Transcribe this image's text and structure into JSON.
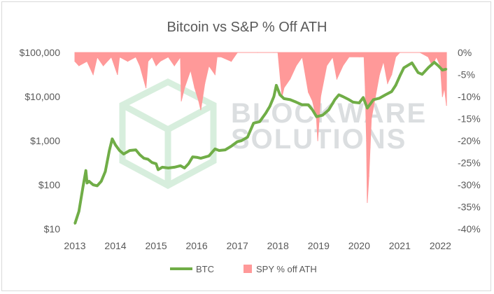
{
  "chart_data": {
    "type": "line",
    "title": "Bitcoin vs S&P % Off ATH",
    "xlabel": "",
    "ylabel": "",
    "x_ticks": [
      "2013",
      "2014",
      "2015",
      "2016",
      "2017",
      "2018",
      "2019",
      "2020",
      "2021",
      "2022"
    ],
    "xlim": [
      2013,
      2022.2
    ],
    "y_left": {
      "scale": "log",
      "ticks": [
        "$10",
        "$100",
        "$1,000",
        "$10,000",
        "$100,000"
      ],
      "ylim": [
        10,
        100000
      ]
    },
    "y_right": {
      "ticks": [
        "0%",
        "-5%",
        "-10%",
        "-15%",
        "-20%",
        "-25%",
        "-30%",
        "-35%",
        "-40%"
      ],
      "ylim": [
        -40,
        0
      ]
    },
    "legend": {
      "position": "bottom",
      "entries": [
        "BTC",
        "SPY % off ATH"
      ]
    },
    "grid": false,
    "colors": {
      "btc": "#70ad47",
      "spy": "#ff9999",
      "overlap": "#a0522d"
    },
    "watermark": "BLOCKWARE SOLUTIONS",
    "series": [
      {
        "name": "BTC",
        "axis": "left",
        "x": [
          2013.0,
          2013.1,
          2013.2,
          2013.27,
          2013.3,
          2013.35,
          2013.45,
          2013.55,
          2013.65,
          2013.75,
          2013.85,
          2013.92,
          2014.0,
          2014.1,
          2014.2,
          2014.35,
          2014.5,
          2014.6,
          2014.7,
          2014.8,
          2014.9,
          2015.0,
          2015.05,
          2015.15,
          2015.3,
          2015.45,
          2015.6,
          2015.7,
          2015.8,
          2015.9,
          2016.0,
          2016.1,
          2016.3,
          2016.45,
          2016.55,
          2016.7,
          2016.85,
          2017.0,
          2017.1,
          2017.25,
          2017.4,
          2017.55,
          2017.7,
          2017.8,
          2017.9,
          2017.96,
          2018.05,
          2018.15,
          2018.3,
          2018.45,
          2018.6,
          2018.75,
          2018.85,
          2018.95,
          2019.1,
          2019.25,
          2019.4,
          2019.5,
          2019.6,
          2019.75,
          2019.85,
          2020.0,
          2020.1,
          2020.2,
          2020.35,
          2020.5,
          2020.65,
          2020.8,
          2020.9,
          2021.0,
          2021.1,
          2021.3,
          2021.45,
          2021.55,
          2021.7,
          2021.85,
          2021.95,
          2022.05,
          2022.15
        ],
        "values": [
          13,
          25,
          90,
          210,
          110,
          120,
          100,
          95,
          120,
          200,
          600,
          1100,
          800,
          600,
          500,
          600,
          620,
          480,
          400,
          380,
          320,
          300,
          220,
          250,
          240,
          250,
          270,
          240,
          300,
          430,
          420,
          400,
          450,
          650,
          600,
          620,
          750,
          950,
          1000,
          1200,
          2500,
          2700,
          4200,
          6000,
          10000,
          18000,
          11000,
          9000,
          8500,
          7500,
          6500,
          6500,
          5000,
          3500,
          3800,
          5000,
          8500,
          11000,
          10000,
          8500,
          7500,
          7200,
          9500,
          5500,
          8500,
          9200,
          11000,
          13000,
          18000,
          29000,
          45000,
          58000,
          35000,
          32000,
          45000,
          60000,
          50000,
          40000,
          42000
        ]
      },
      {
        "name": "SPY % off ATH",
        "axis": "right",
        "x": [
          2013.0,
          2013.1,
          2013.3,
          2013.45,
          2013.55,
          2013.7,
          2013.9,
          2014.05,
          2014.1,
          2014.3,
          2014.5,
          2014.6,
          2014.75,
          2014.8,
          2014.9,
          2015.0,
          2015.1,
          2015.3,
          2015.45,
          2015.6,
          2015.62,
          2015.7,
          2015.85,
          2015.95,
          2016.05,
          2016.1,
          2016.2,
          2016.3,
          2016.45,
          2016.5,
          2016.6,
          2016.85,
          2017.0,
          2017.5,
          2017.9,
          2018.0,
          2018.1,
          2018.15,
          2018.3,
          2018.45,
          2018.6,
          2018.75,
          2018.85,
          2018.95,
          2018.98,
          2019.05,
          2019.2,
          2019.35,
          2019.45,
          2019.6,
          2019.75,
          2020.0,
          2020.12,
          2020.15,
          2020.18,
          2020.2,
          2020.24,
          2020.3,
          2020.4,
          2020.5,
          2020.6,
          2020.7,
          2020.8,
          2020.9,
          2021.0,
          2021.5,
          2021.7,
          2021.8,
          2021.9,
          2022.0,
          2022.05,
          2022.1,
          2022.15
        ],
        "values": [
          -2,
          -3,
          -2,
          -5,
          -1,
          -3,
          -1,
          -5,
          -1,
          -2,
          -1,
          -3,
          -8,
          -2,
          -1,
          -3,
          -2,
          -1,
          -3,
          -1,
          -11,
          -8,
          -4,
          -8,
          -11,
          -13,
          -7,
          -3,
          -5,
          -1,
          -1,
          -2,
          0,
          0,
          0,
          0,
          -10,
          -8,
          -6,
          -3,
          -1,
          -9,
          -11,
          -15,
          -20,
          -10,
          -3,
          -1,
          -6,
          -3,
          -1,
          -1,
          -1,
          -8,
          -20,
          -34,
          -28,
          -15,
          -10,
          -5,
          -2,
          -7,
          -5,
          -1,
          0,
          0,
          -1,
          -3,
          -1,
          -3,
          -10,
          -8,
          -12
        ]
      }
    ]
  }
}
